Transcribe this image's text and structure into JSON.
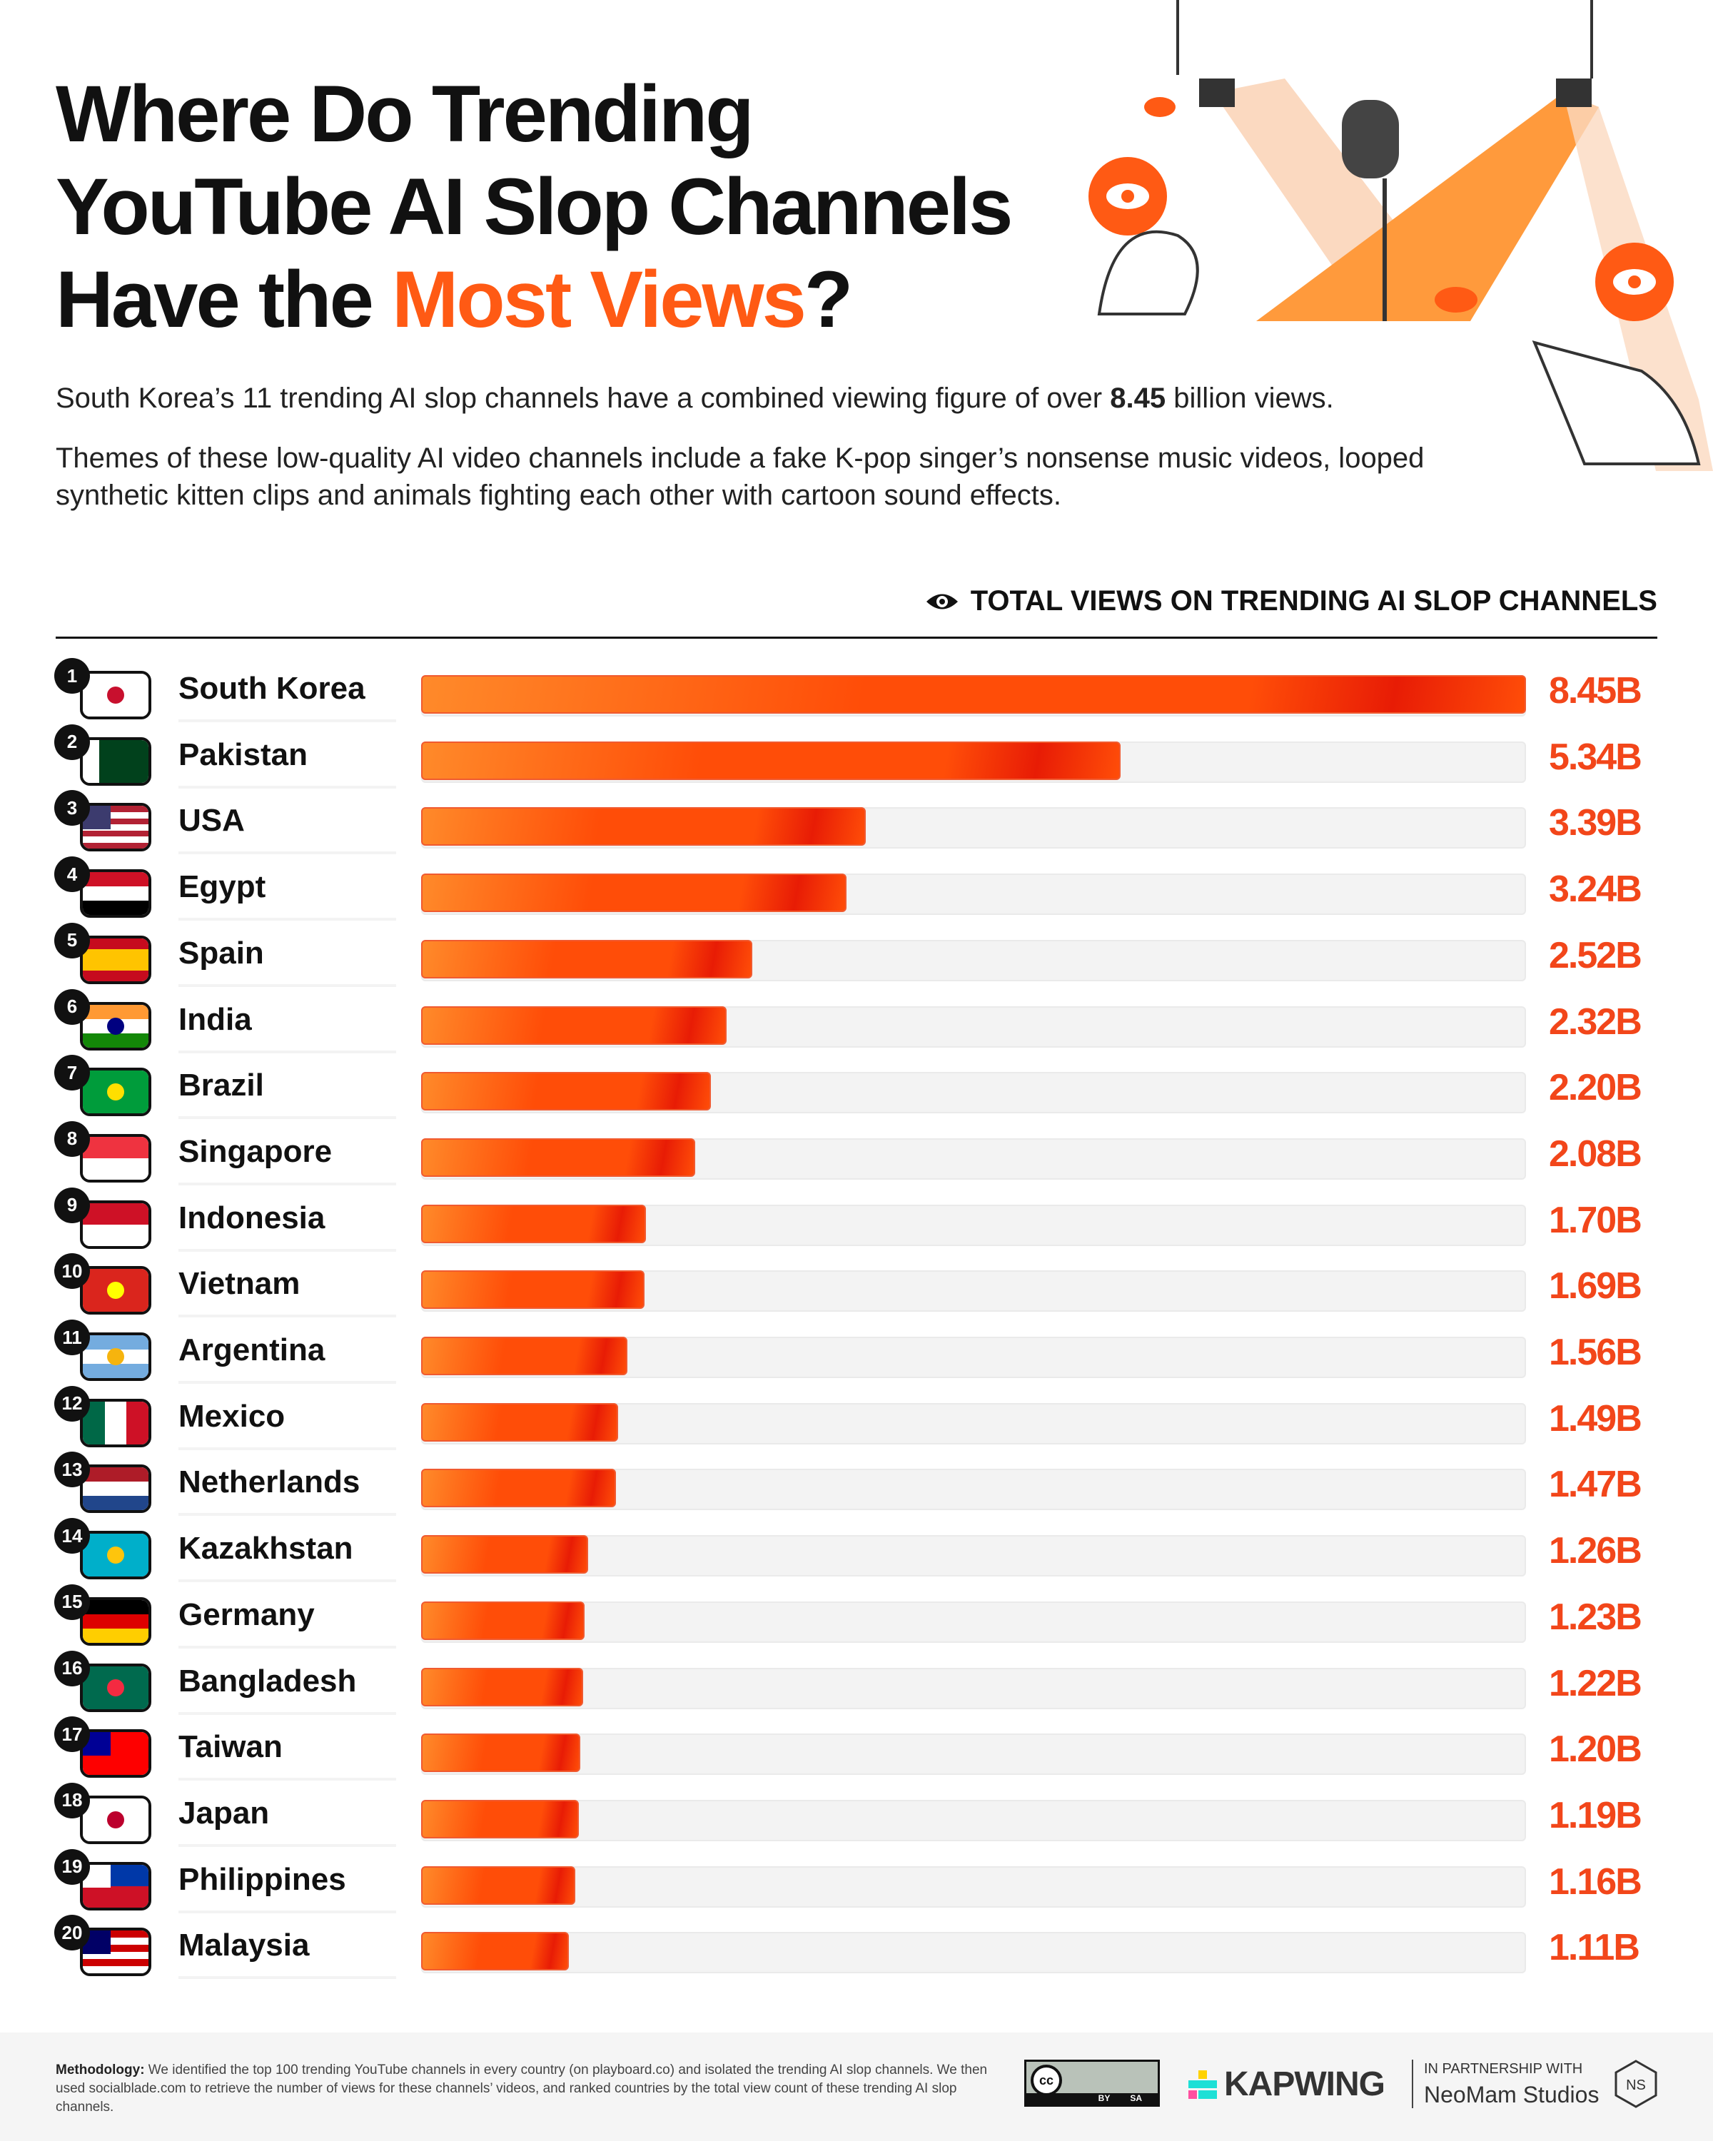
{
  "header": {
    "title_line1": "Where Do Trending",
    "title_line2": "YouTube AI Slop Channels",
    "title_line3_pre": "Have the ",
    "title_line3_highlight": "Most Views",
    "title_line3_post": "?",
    "subtitle_pre": "South Korea’s 11 trending AI slop channels have a combined viewing figure of over ",
    "subtitle_bold": "8.45",
    "subtitle_post": " billion views.",
    "paragraph": "Themes of these low-quality AI video channels include a fake K-pop singer’s nonsense music videos, looped synthetic kitten clips and animals fighting each other with cartoon sound effects."
  },
  "colors": {
    "accent": "#ff5a14",
    "value_text": "#f2461a",
    "track": "#f3f3f3"
  },
  "chart_data": {
    "type": "bar",
    "orientation": "horizontal",
    "legend": "TOTAL VIEWS ON TRENDING AI SLOP CHANNELS",
    "legend_icon": "eye-icon",
    "unit": "billion views",
    "xlim": [
      0,
      8.45
    ],
    "categories": [
      "South Korea",
      "Pakistan",
      "USA",
      "Egypt",
      "Spain",
      "India",
      "Brazil",
      "Singapore",
      "Indonesia",
      "Vietnam",
      "Argentina",
      "Mexico",
      "Netherlands",
      "Kazakhstan",
      "Germany",
      "Bangladesh",
      "Taiwan",
      "Japan",
      "Philippines",
      "Malaysia"
    ],
    "values": [
      8.45,
      5.34,
      3.39,
      3.24,
      2.52,
      2.32,
      2.2,
      2.08,
      1.7,
      1.69,
      1.56,
      1.49,
      1.47,
      1.26,
      1.23,
      1.22,
      1.2,
      1.19,
      1.16,
      1.11
    ],
    "labels": [
      "8.45B",
      "5.34B",
      "3.39B",
      "3.24B",
      "2.52B",
      "2.32B",
      "2.20B",
      "2.08B",
      "1.70B",
      "1.69B",
      "1.56B",
      "1.49B",
      "1.47B",
      "1.26B",
      "1.23B",
      "1.22B",
      "1.20B",
      "1.19B",
      "1.16B",
      "1.11B"
    ],
    "ranks": [
      "1",
      "2",
      "3",
      "4",
      "5",
      "6",
      "7",
      "8",
      "9",
      "10",
      "11",
      "12",
      "13",
      "14",
      "15",
      "16",
      "17",
      "18",
      "19",
      "20"
    ]
  },
  "flags": [
    {
      "type": "h",
      "colors": [
        "#ffffff"
      ],
      "dot": "#c8102e"
    },
    {
      "type": "v",
      "colors": [
        "#ffffff",
        "#01411c",
        "#01411c",
        "#01411c"
      ]
    },
    {
      "type": "h",
      "colors": [
        "#b22234",
        "#ffffff",
        "#b22234",
        "#ffffff",
        "#b22234",
        "#ffffff",
        "#b22234"
      ],
      "canton": "#3c3b6e"
    },
    {
      "type": "h",
      "colors": [
        "#ce1126",
        "#ffffff",
        "#000000"
      ]
    },
    {
      "type": "h",
      "colors": [
        "#c60b1e",
        "#ffc400",
        "#ffc400",
        "#c60b1e"
      ]
    },
    {
      "type": "h",
      "colors": [
        "#ff9933",
        "#ffffff",
        "#138808"
      ],
      "dot": "#000080"
    },
    {
      "type": "h",
      "colors": [
        "#009c3b"
      ],
      "dot": "#ffdf00"
    },
    {
      "type": "h",
      "colors": [
        "#ef3340",
        "#ffffff"
      ]
    },
    {
      "type": "h",
      "colors": [
        "#ce1126",
        "#ffffff"
      ]
    },
    {
      "type": "h",
      "colors": [
        "#da251d"
      ],
      "dot": "#ffff00"
    },
    {
      "type": "h",
      "colors": [
        "#74acdf",
        "#ffffff",
        "#74acdf"
      ],
      "dot": "#f6b40e"
    },
    {
      "type": "v",
      "colors": [
        "#006847",
        "#ffffff",
        "#ce1126"
      ]
    },
    {
      "type": "h",
      "colors": [
        "#ae1c28",
        "#ffffff",
        "#21468b"
      ]
    },
    {
      "type": "h",
      "colors": [
        "#00afca"
      ],
      "dot": "#fec50c"
    },
    {
      "type": "h",
      "colors": [
        "#000000",
        "#dd0000",
        "#ffce00"
      ]
    },
    {
      "type": "h",
      "colors": [
        "#006a4e"
      ],
      "dot": "#f42a41"
    },
    {
      "type": "h",
      "colors": [
        "#fe0000"
      ],
      "canton": "#000095"
    },
    {
      "type": "h",
      "colors": [
        "#ffffff"
      ],
      "dot": "#bc002d"
    },
    {
      "type": "h",
      "colors": [
        "#0038a8",
        "#ce1126"
      ],
      "canton": "#ffffff"
    },
    {
      "type": "h",
      "colors": [
        "#cc0001",
        "#ffffff",
        "#cc0001",
        "#ffffff",
        "#cc0001",
        "#ffffff"
      ],
      "canton": "#010066"
    }
  ],
  "footer": {
    "methodology_label": "Methodology:",
    "methodology_text": " We identified the top 100 trending YouTube channels in every country (on playboard.co) and isolated the trending AI slop channels. We then used socialblade.com to retrieve the number of views for these channels’ videos, and ranked countries by the total view count of these trending AI slop channels.",
    "license": "CC BY SA",
    "license_by": "BY",
    "license_sa": "SA",
    "brand": "KAPWING",
    "partner_label": "IN PARTNERSHIP WITH",
    "partner_name": "NeoMam Studios"
  }
}
